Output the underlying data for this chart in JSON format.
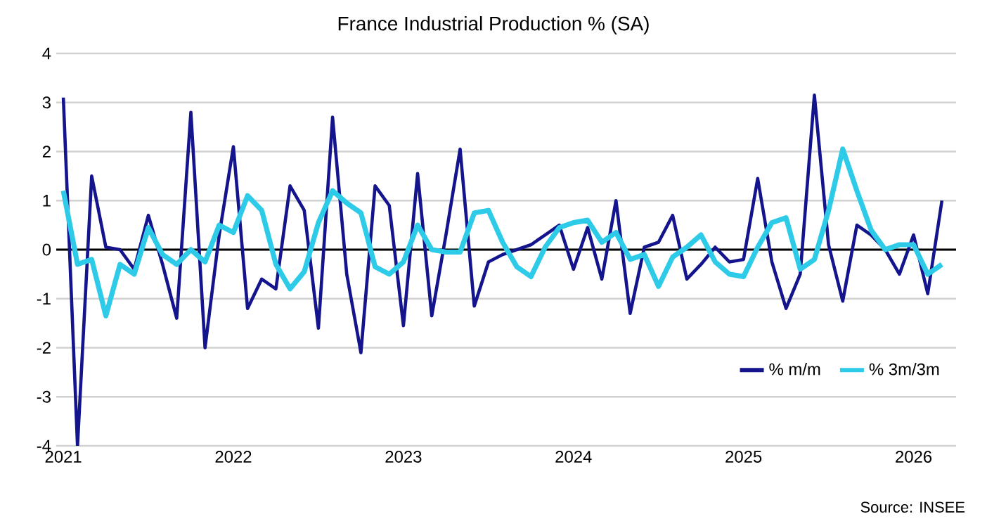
{
  "chart_data": {
    "type": "line",
    "title": "France Industrial Production % (SA)",
    "x": [
      "2021-01",
      "2021-02",
      "2021-03",
      "2021-04",
      "2021-05",
      "2021-06",
      "2021-07",
      "2021-08",
      "2021-09",
      "2021-10",
      "2021-11",
      "2021-12",
      "2022-01",
      "2022-02",
      "2022-03",
      "2022-04",
      "2022-05",
      "2022-06",
      "2022-07",
      "2022-08",
      "2022-09",
      "2022-10",
      "2022-11",
      "2022-12",
      "2023-01",
      "2023-02",
      "2023-03",
      "2023-04",
      "2023-05",
      "2023-06",
      "2023-07",
      "2023-08",
      "2023-09",
      "2023-10",
      "2023-11",
      "2023-12",
      "2024-01",
      "2024-02",
      "2024-03",
      "2024-04",
      "2024-05",
      "2024-06",
      "2024-07",
      "2024-08",
      "2024-09",
      "2024-10",
      "2024-11",
      "2024-12",
      "2025-01",
      "2025-02",
      "2025-03",
      "2025-04",
      "2025-05",
      "2025-06",
      "2025-07",
      "2025-08",
      "2025-09",
      "2025-10",
      "2025-11",
      "2025-12",
      "2026-01",
      "2026-02",
      "2026-03"
    ],
    "series": [
      {
        "name": "% m/m",
        "color": "#14148c",
        "values": [
          3.1,
          -4.0,
          1.5,
          0.05,
          0.0,
          -0.4,
          0.7,
          -0.3,
          -1.4,
          2.8,
          -2.0,
          0.3,
          2.1,
          -1.2,
          -0.6,
          -0.8,
          1.3,
          0.8,
          -1.6,
          2.7,
          -0.5,
          -2.1,
          1.3,
          0.9,
          -1.55,
          1.55,
          -1.35,
          0.3,
          2.05,
          -1.15,
          -0.25,
          -0.1,
          0.0,
          0.1,
          0.3,
          0.5,
          -0.4,
          0.45,
          -0.6,
          1.0,
          -1.3,
          0.05,
          0.15,
          0.7,
          -0.6,
          -0.3,
          0.05,
          -0.25,
          -0.2,
          1.45,
          -0.25,
          -1.2,
          -0.5,
          3.15,
          0.1,
          -1.05,
          0.5,
          0.3,
          0.0,
          -0.5,
          0.3,
          -0.9,
          1.0
        ]
      },
      {
        "name": "% 3m/3m",
        "color": "#2ecbe9",
        "values": [
          1.2,
          -0.3,
          -0.2,
          -1.35,
          -0.3,
          -0.5,
          0.45,
          -0.1,
          -0.3,
          0.0,
          -0.25,
          0.5,
          0.35,
          1.1,
          0.8,
          -0.3,
          -0.8,
          -0.45,
          0.55,
          1.2,
          0.95,
          0.75,
          -0.35,
          -0.5,
          -0.25,
          0.5,
          0.0,
          -0.05,
          -0.05,
          0.75,
          0.8,
          0.15,
          -0.35,
          -0.55,
          0.05,
          0.45,
          0.55,
          0.6,
          0.15,
          0.35,
          -0.2,
          -0.1,
          -0.75,
          -0.15,
          0.05,
          0.3,
          -0.25,
          -0.5,
          -0.55,
          0.05,
          0.55,
          0.65,
          -0.4,
          -0.2,
          0.8,
          2.05,
          1.2,
          0.4,
          0.0,
          0.1,
          0.1,
          -0.5,
          -0.3
        ]
      }
    ],
    "xlim": [
      "2020-12-16",
      "2026-04-01"
    ],
    "xticks": [
      "2021",
      "2022",
      "2023",
      "2024",
      "2025",
      "2026"
    ],
    "ylim": [
      -4,
      4
    ],
    "yticks": [
      -4,
      -3,
      -2,
      -1,
      0,
      1,
      2,
      3,
      4
    ],
    "grid": "y",
    "ref_lines": [
      {
        "axis": "y",
        "value": 0,
        "color": "#000000"
      }
    ],
    "legend": "bottom right",
    "marker": "none",
    "line_style": "solid",
    "annotations": [
      "Source: INSEE"
    ]
  }
}
